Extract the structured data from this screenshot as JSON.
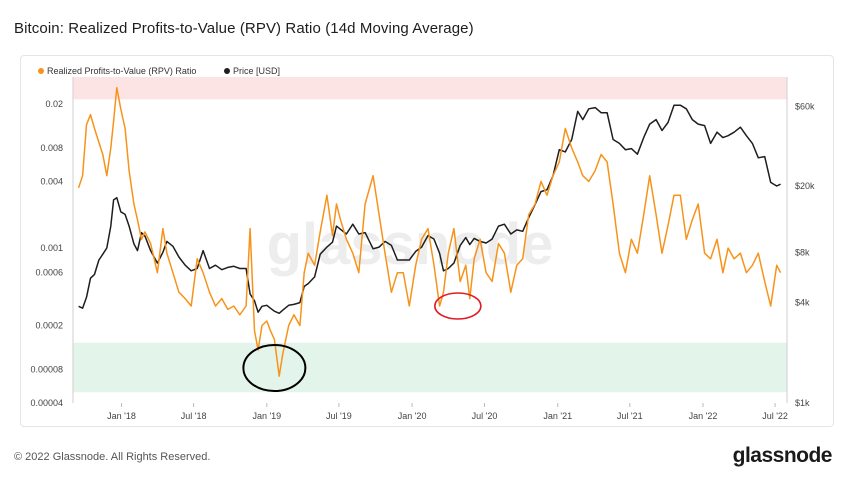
{
  "title": "Bitcoin: Realized Profits-to-Value (RPV) Ratio (14d Moving Average)",
  "footer": {
    "copyright": "© 2022 Glassnode. All Rights Reserved.",
    "logo": "glassnode"
  },
  "watermark": "glassnode",
  "colors": {
    "rpv": "#f7931a",
    "price": "#1e1e1e",
    "red_band": "#fde4e4",
    "green_band": "#e3f5ea",
    "red_circle": "#e01b24",
    "black_circle": "#000000"
  },
  "chart_data": {
    "type": "line",
    "x_ticks": [
      "Jan '18",
      "Jul '18",
      "Jan '19",
      "Jul '19",
      "Jan '20",
      "Jul '20",
      "Jan '21",
      "Jul '21",
      "Jan '22",
      "Jul '22"
    ],
    "y_left": {
      "scale": "log",
      "ticks": [
        "0.02",
        "0.008",
        "0.004",
        "0.001",
        "0.0006",
        "0.0002",
        "0.00008",
        "0.00004"
      ],
      "range": [
        4e-05,
        0.035
      ]
    },
    "y_right": {
      "scale": "log",
      "ticks": [
        "$60k",
        "$20k",
        "$8k",
        "$4k",
        "$1k"
      ],
      "range": [
        1000,
        90000
      ]
    },
    "bands": [
      {
        "name": "high",
        "from": 0.022,
        "to": 0.035
      },
      {
        "name": "low",
        "from": 5e-05,
        "to": 0.00014
      }
    ],
    "series": [
      {
        "name": "Realized Profits-to-Value (RPV) Ratio",
        "axis": "left",
        "x": [
          "2017-09-15",
          "2017-09-25",
          "2017-10-05",
          "2017-10-15",
          "2017-10-25",
          "2017-11-05",
          "2017-11-15",
          "2017-11-25",
          "2017-12-05",
          "2017-12-12",
          "2017-12-20",
          "2017-12-30",
          "2018-01-10",
          "2018-01-20",
          "2018-02-01",
          "2018-02-10",
          "2018-02-20",
          "2018-03-01",
          "2018-03-15",
          "2018-04-01",
          "2018-04-15",
          "2018-04-25",
          "2018-05-10",
          "2018-05-25",
          "2018-06-10",
          "2018-06-25",
          "2018-07-10",
          "2018-07-25",
          "2018-08-10",
          "2018-08-25",
          "2018-09-10",
          "2018-09-25",
          "2018-10-10",
          "2018-10-25",
          "2018-11-10",
          "2018-11-20",
          "2018-12-01",
          "2018-12-10",
          "2018-12-20",
          "2019-01-01",
          "2019-01-10",
          "2019-01-20",
          "2019-02-01",
          "2019-02-10",
          "2019-02-25",
          "2019-03-10",
          "2019-03-25",
          "2019-04-05",
          "2019-04-15",
          "2019-05-01",
          "2019-05-15",
          "2019-06-01",
          "2019-06-15",
          "2019-06-25",
          "2019-07-05",
          "2019-07-20",
          "2019-08-05",
          "2019-08-20",
          "2019-09-05",
          "2019-09-25",
          "2019-10-10",
          "2019-10-25",
          "2019-11-10",
          "2019-11-25",
          "2019-12-10",
          "2019-12-25",
          "2020-01-10",
          "2020-01-25",
          "2020-02-10",
          "2020-02-25",
          "2020-03-10",
          "2020-03-20",
          "2020-04-01",
          "2020-04-15",
          "2020-05-01",
          "2020-05-15",
          "2020-05-25",
          "2020-06-05",
          "2020-06-20",
          "2020-07-05",
          "2020-07-20",
          "2020-08-05",
          "2020-08-20",
          "2020-09-05",
          "2020-09-20",
          "2020-10-05",
          "2020-10-20",
          "2020-11-05",
          "2020-11-20",
          "2020-12-05",
          "2020-12-20",
          "2021-01-05",
          "2021-01-20",
          "2021-02-05",
          "2021-02-20",
          "2021-03-05",
          "2021-03-20",
          "2021-04-05",
          "2021-04-20",
          "2021-05-05",
          "2021-05-20",
          "2021-06-05",
          "2021-06-20",
          "2021-07-05",
          "2021-07-20",
          "2021-08-05",
          "2021-08-20",
          "2021-09-05",
          "2021-09-20",
          "2021-10-05",
          "2021-10-20",
          "2021-11-05",
          "2021-11-20",
          "2021-12-05",
          "2021-12-20",
          "2022-01-05",
          "2022-01-20",
          "2022-02-05",
          "2022-02-20",
          "2022-03-05",
          "2022-03-20",
          "2022-04-05",
          "2022-04-20",
          "2022-05-05",
          "2022-05-20",
          "2022-06-05",
          "2022-06-20",
          "2022-07-05",
          "2022-07-15"
        ],
        "y": [
          0.0035,
          0.0045,
          0.013,
          0.016,
          0.012,
          0.009,
          0.007,
          0.0045,
          0.008,
          0.014,
          0.028,
          0.018,
          0.012,
          0.005,
          0.0025,
          0.0018,
          0.0012,
          0.0014,
          0.0011,
          0.0006,
          0.0015,
          0.0009,
          0.0006,
          0.0004,
          0.00035,
          0.0003,
          0.0008,
          0.0006,
          0.0004,
          0.0003,
          0.00035,
          0.00028,
          0.0003,
          0.00025,
          0.0003,
          0.0015,
          0.00018,
          0.00012,
          0.0002,
          0.00022,
          0.00018,
          0.00015,
          7e-05,
          0.00011,
          0.0002,
          0.00025,
          0.0002,
          0.0006,
          0.0009,
          0.0007,
          0.0014,
          0.003,
          0.0013,
          0.0025,
          0.0018,
          0.0012,
          0.0009,
          0.0006,
          0.0025,
          0.0045,
          0.002,
          0.0009,
          0.0004,
          0.0006,
          0.0006,
          0.0003,
          0.0007,
          0.0012,
          0.0015,
          0.0007,
          0.0003,
          0.0004,
          0.0009,
          0.0015,
          0.0005,
          0.0007,
          0.00035,
          0.0008,
          0.0012,
          0.0006,
          0.0005,
          0.0011,
          0.0009,
          0.0004,
          0.0007,
          0.0008,
          0.002,
          0.0025,
          0.004,
          0.003,
          0.0045,
          0.006,
          0.012,
          0.008,
          0.006,
          0.0045,
          0.004,
          0.005,
          0.007,
          0.006,
          0.0025,
          0.0009,
          0.0006,
          0.0012,
          0.0009,
          0.002,
          0.0045,
          0.002,
          0.0009,
          0.0016,
          0.003,
          0.003,
          0.0012,
          0.0018,
          0.0025,
          0.0009,
          0.0008,
          0.0012,
          0.0006,
          0.001,
          0.0008,
          0.0009,
          0.0006,
          0.0007,
          0.0009,
          0.0005,
          0.0003,
          0.0007,
          0.0006
        ],
        "legend_marker": "circle"
      },
      {
        "name": "Price [USD]",
        "axis": "right",
        "x": [
          "2017-09-15",
          "2017-09-25",
          "2017-10-05",
          "2017-10-15",
          "2017-10-25",
          "2017-11-05",
          "2017-11-15",
          "2017-11-25",
          "2017-12-05",
          "2017-12-12",
          "2017-12-20",
          "2017-12-30",
          "2018-01-10",
          "2018-01-20",
          "2018-02-01",
          "2018-02-10",
          "2018-02-20",
          "2018-03-01",
          "2018-03-15",
          "2018-04-01",
          "2018-04-15",
          "2018-04-25",
          "2018-05-10",
          "2018-05-25",
          "2018-06-10",
          "2018-06-25",
          "2018-07-10",
          "2018-07-25",
          "2018-08-10",
          "2018-08-25",
          "2018-09-10",
          "2018-09-25",
          "2018-10-10",
          "2018-10-25",
          "2018-11-10",
          "2018-11-20",
          "2018-12-01",
          "2018-12-10",
          "2018-12-20",
          "2019-01-01",
          "2019-01-10",
          "2019-01-20",
          "2019-02-01",
          "2019-02-10",
          "2019-02-25",
          "2019-03-10",
          "2019-03-25",
          "2019-04-05",
          "2019-04-15",
          "2019-05-01",
          "2019-05-15",
          "2019-06-01",
          "2019-06-15",
          "2019-06-25",
          "2019-07-05",
          "2019-07-20",
          "2019-08-05",
          "2019-08-20",
          "2019-09-05",
          "2019-09-25",
          "2019-10-10",
          "2019-10-25",
          "2019-11-10",
          "2019-11-25",
          "2019-12-10",
          "2019-12-25",
          "2020-01-10",
          "2020-01-25",
          "2020-02-10",
          "2020-02-25",
          "2020-03-10",
          "2020-03-20",
          "2020-04-01",
          "2020-04-15",
          "2020-05-01",
          "2020-05-15",
          "2020-05-25",
          "2020-06-05",
          "2020-06-20",
          "2020-07-05",
          "2020-07-20",
          "2020-08-05",
          "2020-08-20",
          "2020-09-05",
          "2020-09-20",
          "2020-10-05",
          "2020-10-20",
          "2020-11-05",
          "2020-11-20",
          "2020-12-05",
          "2020-12-20",
          "2021-01-05",
          "2021-01-20",
          "2021-02-05",
          "2021-02-20",
          "2021-03-05",
          "2021-03-20",
          "2021-04-05",
          "2021-04-20",
          "2021-05-05",
          "2021-05-20",
          "2021-06-05",
          "2021-06-20",
          "2021-07-05",
          "2021-07-20",
          "2021-08-05",
          "2021-08-20",
          "2021-09-05",
          "2021-09-20",
          "2021-10-05",
          "2021-10-20",
          "2021-11-05",
          "2021-11-20",
          "2021-12-05",
          "2021-12-20",
          "2022-01-05",
          "2022-01-20",
          "2022-02-05",
          "2022-02-20",
          "2022-03-05",
          "2022-03-20",
          "2022-04-05",
          "2022-04-20",
          "2022-05-05",
          "2022-05-20",
          "2022-06-05",
          "2022-06-20",
          "2022-07-05",
          "2022-07-15"
        ],
        "y": [
          3800,
          3700,
          4300,
          5600,
          5900,
          7200,
          7800,
          8500,
          11500,
          16500,
          17000,
          14000,
          13500,
          11500,
          9000,
          8200,
          10500,
          10000,
          8200,
          6900,
          8000,
          9300,
          8700,
          7500,
          6700,
          6200,
          6400,
          8200,
          6400,
          6700,
          6300,
          6500,
          6600,
          6400,
          6400,
          4500,
          4100,
          3500,
          3800,
          3850,
          3700,
          3550,
          3450,
          3600,
          3850,
          3900,
          4000,
          5000,
          5200,
          5700,
          7800,
          8600,
          9200,
          11500,
          11000,
          10300,
          11800,
          10300,
          10500,
          8400,
          8600,
          9300,
          8800,
          7200,
          7200,
          7200,
          8100,
          8600,
          10100,
          9600,
          7900,
          6200,
          6400,
          6900,
          8800,
          9800,
          8900,
          9700,
          9300,
          9100,
          9600,
          11500,
          11800,
          10300,
          10900,
          10700,
          12900,
          15500,
          18500,
          19000,
          23000,
          33000,
          32000,
          38000,
          56000,
          50000,
          58000,
          59000,
          55000,
          55000,
          38000,
          36000,
          33000,
          33500,
          31000,
          39000,
          47000,
          50000,
          43000,
          48000,
          61000,
          61000,
          58000,
          50000,
          47000,
          46000,
          36000,
          42000,
          39000,
          40000,
          42000,
          45000,
          40000,
          36000,
          29500,
          30000,
          21000,
          20000,
          20500
        ],
        "legend_marker": "circle"
      }
    ]
  }
}
